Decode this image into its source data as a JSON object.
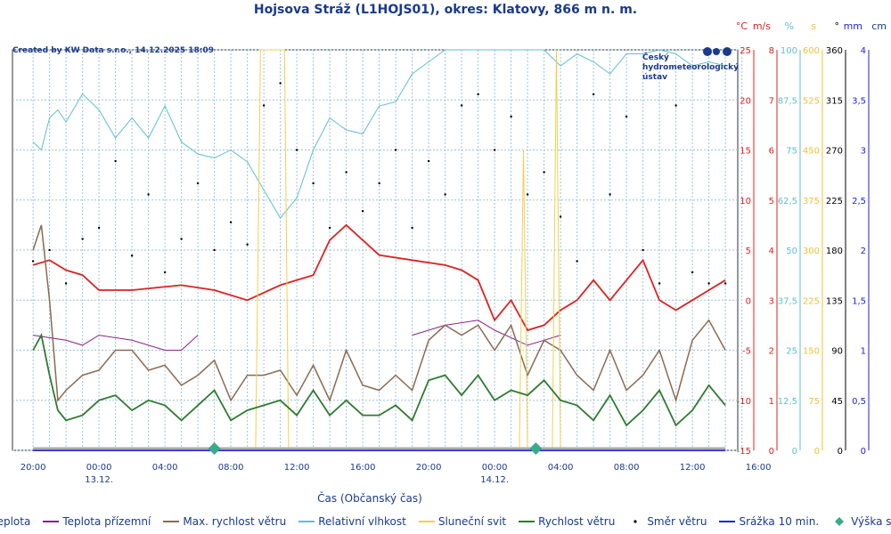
{
  "header": {
    "title": "Hojsova Stráž (L1HOJS01), okres: Klatovy, 866 m n. m."
  },
  "credit": "Created by KW Data s.r.o., 14.12.2025 18:09",
  "logo": {
    "line1": "Český",
    "line2": "hydrometeorologický",
    "line3": "ústav"
  },
  "colors": {
    "teplota": "#dd2222",
    "prizemni": "#882288",
    "maxvitr": "#8b6a50",
    "vlhkost": "#5fbfd0",
    "slunce": "#f0d050",
    "rychlost": "#2f7a2f",
    "smer": "#000000",
    "srazka": "#2222dd",
    "snih": "#3aaa88"
  },
  "chart_data": {
    "type": "line",
    "title": "Hojsova Stráž (L1HOJS01), okres: Klatovy, 866 m n. m.",
    "xlabel": "Čas (Občanský čas)",
    "x_ticks": [
      "20:00",
      "00:00",
      "04:00",
      "08:00",
      "12:00",
      "16:00",
      "20:00",
      "00:00",
      "04:00",
      "08:00",
      "12:00",
      "16:00"
    ],
    "x_dates": [
      "13.12.",
      "14.12."
    ],
    "axes": [
      {
        "unit": "°C",
        "ticks": [
          "25",
          "20",
          "15",
          "10",
          "5",
          "0",
          "-5",
          "-10",
          "-15"
        ],
        "range": [
          -15,
          25
        ]
      },
      {
        "unit": "m/s",
        "ticks": [
          "8",
          "7",
          "6",
          "5",
          "4",
          "3",
          "2",
          "1",
          "0"
        ],
        "range": [
          0,
          8
        ]
      },
      {
        "unit": "%",
        "ticks": [
          "100",
          "87,5",
          "75",
          "62,5",
          "50",
          "37,5",
          "25",
          "12,5",
          "0"
        ],
        "range": [
          0,
          100
        ]
      },
      {
        "unit": "s",
        "ticks": [
          "600",
          "525",
          "450",
          "375",
          "300",
          "225",
          "150",
          "75",
          "0"
        ],
        "range": [
          0,
          600
        ]
      },
      {
        "unit": "°",
        "ticks": [
          "360",
          "315",
          "270",
          "225",
          "180",
          "135",
          "90",
          "45",
          "0"
        ],
        "range": [
          0,
          360
        ]
      },
      {
        "unit": "mm",
        "ticks": [
          "4",
          "3,5",
          "3",
          "2,5",
          "2",
          "1,5",
          "1",
          "0,5",
          "0"
        ],
        "range": [
          0,
          4
        ]
      },
      {
        "unit": "cm",
        "ticks": [],
        "range": [
          0,
          4
        ]
      }
    ],
    "unit_labels": [
      "°C",
      "m/s",
      "%",
      "s",
      "°",
      "mm",
      "cm"
    ],
    "series": [
      {
        "name": "Teplota",
        "unit": "°C",
        "points": [
          [
            0,
            3.5
          ],
          [
            2,
            4
          ],
          [
            4,
            3
          ],
          [
            6,
            2.5
          ],
          [
            8,
            1
          ],
          [
            12,
            1
          ],
          [
            18,
            1.5
          ],
          [
            22,
            1
          ],
          [
            26,
            0
          ],
          [
            30,
            1.5
          ],
          [
            34,
            2.5
          ],
          [
            36,
            6
          ],
          [
            38,
            7.5
          ],
          [
            40,
            6
          ],
          [
            42,
            4.5
          ],
          [
            46,
            4
          ],
          [
            50,
            3.5
          ],
          [
            52,
            3
          ],
          [
            54,
            2
          ],
          [
            56,
            -2
          ],
          [
            58,
            0
          ],
          [
            60,
            -3
          ],
          [
            62,
            -2.5
          ],
          [
            64,
            -1
          ],
          [
            66,
            0
          ],
          [
            68,
            2
          ],
          [
            70,
            0
          ],
          [
            72,
            2
          ],
          [
            74,
            4
          ],
          [
            76,
            0
          ],
          [
            78,
            -1
          ],
          [
            80,
            0
          ],
          [
            82,
            1
          ],
          [
            84,
            2
          ]
        ]
      },
      {
        "name": "Teplota přízemní",
        "unit": "°C",
        "points": [
          [
            0,
            -3.5
          ],
          [
            4,
            -4
          ],
          [
            6,
            -4.5
          ],
          [
            8,
            -3.5
          ],
          [
            12,
            -4
          ],
          [
            16,
            -5
          ],
          [
            18,
            -5
          ],
          [
            20,
            -3.5
          ]
        ]
      },
      {
        "name": "Teplota přízemní",
        "unit": "°C",
        "points": [
          [
            46,
            -3.5
          ],
          [
            50,
            -2.5
          ],
          [
            54,
            -2
          ],
          [
            56,
            -3
          ],
          [
            60,
            -4.5
          ],
          [
            62,
            -4
          ],
          [
            64,
            -3.5
          ]
        ]
      },
      {
        "name": "Max. rychlost větru",
        "unit": "m/s",
        "points": [
          [
            0,
            4
          ],
          [
            1,
            4.5
          ],
          [
            2,
            3
          ],
          [
            3,
            1
          ],
          [
            4,
            1.2
          ],
          [
            6,
            1.5
          ],
          [
            8,
            1.6
          ],
          [
            10,
            2
          ],
          [
            12,
            2
          ],
          [
            14,
            1.6
          ],
          [
            16,
            1.7
          ],
          [
            18,
            1.3
          ],
          [
            20,
            1.5
          ],
          [
            22,
            1.8
          ],
          [
            24,
            1
          ],
          [
            26,
            1.5
          ],
          [
            28,
            1.5
          ],
          [
            30,
            1.6
          ],
          [
            32,
            1.1
          ],
          [
            34,
            1.7
          ],
          [
            36,
            1
          ],
          [
            38,
            2
          ],
          [
            40,
            1.3
          ],
          [
            42,
            1.2
          ],
          [
            44,
            1.5
          ],
          [
            46,
            1.2
          ],
          [
            48,
            2.2
          ],
          [
            50,
            2.5
          ],
          [
            52,
            2.3
          ],
          [
            54,
            2.5
          ],
          [
            56,
            2
          ],
          [
            58,
            2.5
          ],
          [
            60,
            1.5
          ],
          [
            62,
            2.2
          ],
          [
            64,
            2
          ],
          [
            66,
            1.5
          ],
          [
            68,
            1.2
          ],
          [
            70,
            2
          ],
          [
            72,
            1.2
          ],
          [
            74,
            1.5
          ],
          [
            76,
            2
          ],
          [
            78,
            1
          ],
          [
            80,
            2.2
          ],
          [
            82,
            2.6
          ],
          [
            84,
            2
          ]
        ]
      },
      {
        "name": "Relativní vlhkost",
        "unit": "%",
        "points": [
          [
            0,
            77
          ],
          [
            1,
            75
          ],
          [
            2,
            83
          ],
          [
            3,
            85
          ],
          [
            4,
            82
          ],
          [
            6,
            89
          ],
          [
            8,
            85
          ],
          [
            10,
            78
          ],
          [
            12,
            83
          ],
          [
            14,
            78
          ],
          [
            16,
            86
          ],
          [
            18,
            77
          ],
          [
            20,
            74
          ],
          [
            22,
            73
          ],
          [
            24,
            75
          ],
          [
            26,
            72
          ],
          [
            28,
            65
          ],
          [
            30,
            58
          ],
          [
            32,
            63
          ],
          [
            34,
            75
          ],
          [
            36,
            83
          ],
          [
            38,
            80
          ],
          [
            40,
            79
          ],
          [
            42,
            86
          ],
          [
            44,
            87
          ],
          [
            46,
            94
          ],
          [
            48,
            97
          ],
          [
            50,
            100
          ],
          [
            52,
            100
          ],
          [
            54,
            100
          ],
          [
            56,
            100
          ],
          [
            58,
            100
          ],
          [
            60,
            100
          ],
          [
            62,
            100
          ],
          [
            64,
            96
          ],
          [
            66,
            99
          ],
          [
            68,
            97
          ],
          [
            70,
            94
          ],
          [
            72,
            99
          ],
          [
            74,
            99
          ],
          [
            76,
            100
          ],
          [
            78,
            99
          ],
          [
            80,
            96
          ],
          [
            82,
            97
          ],
          [
            84,
            96
          ]
        ]
      },
      {
        "name": "Sluneční svit",
        "unit": "s",
        "points": [
          [
            0,
            0
          ],
          [
            27,
            0
          ],
          [
            27.6,
            600
          ],
          [
            30.5,
            600
          ],
          [
            31,
            0
          ],
          [
            59,
            0
          ],
          [
            59.5,
            450
          ],
          [
            60,
            0
          ],
          [
            63,
            0
          ],
          [
            63.5,
            600
          ],
          [
            64,
            0
          ],
          [
            70,
            0
          ]
        ]
      },
      {
        "name": "Rychlost větru",
        "unit": "m/s",
        "points": [
          [
            0,
            2
          ],
          [
            1,
            2.3
          ],
          [
            2,
            1.5
          ],
          [
            3,
            0.8
          ],
          [
            4,
            0.6
          ],
          [
            6,
            0.7
          ],
          [
            8,
            1
          ],
          [
            10,
            1.1
          ],
          [
            12,
            0.8
          ],
          [
            14,
            1
          ],
          [
            16,
            0.9
          ],
          [
            18,
            0.6
          ],
          [
            20,
            0.9
          ],
          [
            22,
            1.2
          ],
          [
            24,
            0.6
          ],
          [
            26,
            0.8
          ],
          [
            28,
            0.9
          ],
          [
            30,
            1
          ],
          [
            32,
            0.7
          ],
          [
            34,
            1.2
          ],
          [
            36,
            0.7
          ],
          [
            38,
            1
          ],
          [
            40,
            0.7
          ],
          [
            42,
            0.7
          ],
          [
            44,
            0.9
          ],
          [
            46,
            0.6
          ],
          [
            48,
            1.4
          ],
          [
            50,
            1.5
          ],
          [
            52,
            1.1
          ],
          [
            54,
            1.5
          ],
          [
            56,
            1
          ],
          [
            58,
            1.2
          ],
          [
            60,
            1.1
          ],
          [
            62,
            1.4
          ],
          [
            64,
            1
          ],
          [
            66,
            0.9
          ],
          [
            68,
            0.6
          ],
          [
            70,
            1.1
          ],
          [
            72,
            0.5
          ],
          [
            74,
            0.8
          ],
          [
            76,
            1.2
          ],
          [
            78,
            0.5
          ],
          [
            80,
            0.8
          ],
          [
            82,
            1.3
          ],
          [
            84,
            0.9
          ]
        ]
      },
      {
        "name": "Srážka 10 min.",
        "unit": "mm",
        "points": [
          [
            0,
            0
          ],
          [
            84,
            0
          ]
        ]
      }
    ],
    "snow_markers": [
      {
        "x": 22,
        "cm": 0.05
      },
      {
        "x": 61,
        "cm": 0.05
      }
    ],
    "wind_dir_points": [
      [
        0,
        170
      ],
      [
        2,
        180
      ],
      [
        4,
        150
      ],
      [
        6,
        190
      ],
      [
        8,
        200
      ],
      [
        10,
        260
      ],
      [
        12,
        175
      ],
      [
        14,
        230
      ],
      [
        16,
        160
      ],
      [
        18,
        190
      ],
      [
        20,
        240
      ],
      [
        22,
        180
      ],
      [
        24,
        205
      ],
      [
        26,
        185
      ],
      [
        28,
        310
      ],
      [
        30,
        330
      ],
      [
        32,
        270
      ],
      [
        34,
        240
      ],
      [
        36,
        200
      ],
      [
        38,
        250
      ],
      [
        40,
        215
      ],
      [
        42,
        240
      ],
      [
        44,
        270
      ],
      [
        46,
        200
      ],
      [
        48,
        260
      ],
      [
        50,
        230
      ],
      [
        52,
        310
      ],
      [
        54,
        320
      ],
      [
        56,
        270
      ],
      [
        58,
        300
      ],
      [
        60,
        230
      ],
      [
        62,
        250
      ],
      [
        64,
        210
      ],
      [
        66,
        170
      ],
      [
        68,
        320
      ],
      [
        70,
        230
      ],
      [
        72,
        300
      ],
      [
        74,
        180
      ],
      [
        76,
        150
      ],
      [
        78,
        310
      ],
      [
        80,
        160
      ],
      [
        82,
        150
      ],
      [
        84,
        150
      ]
    ],
    "grid": true,
    "legend_position": "bottom",
    "legend": [
      "Teplota",
      "Teplota přízemní",
      "Max. rychlost větru",
      "Relativní vlhkost",
      "Sluneční svit",
      "Rychlost větru",
      "Směr větru",
      "Srážka 10 min.",
      "Výška sněhu"
    ]
  }
}
